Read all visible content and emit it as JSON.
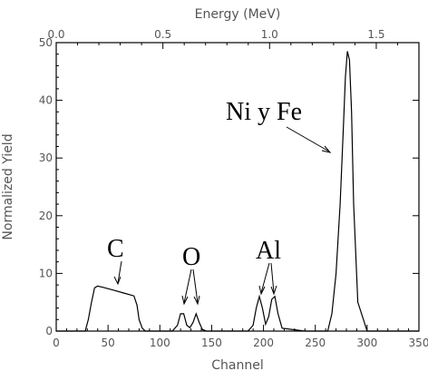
{
  "chart_data": {
    "type": "line",
    "title": "",
    "xlabel": "Channel",
    "ylabel": "Normalized Yield",
    "top_axis_label": "Energy (MeV)",
    "xlim": [
      0,
      350
    ],
    "ylim": [
      0,
      50
    ],
    "top_xlim": [
      0.0,
      1.7
    ],
    "x_ticks": [
      "0",
      "50",
      "100",
      "150",
      "200",
      "250",
      "300",
      "350"
    ],
    "y_ticks": [
      "0",
      "10",
      "20",
      "30",
      "40",
      "50"
    ],
    "top_ticks": [
      "0.0",
      "0.5",
      "1.0",
      "1.5"
    ],
    "grid": false,
    "series": [
      {
        "name": "",
        "x": [
          0,
          28,
          31,
          34,
          37,
          40,
          45,
          55,
          65,
          75,
          78,
          80,
          83,
          86,
          90,
          100,
          112,
          117,
          120,
          123,
          126,
          129,
          132,
          135,
          138,
          141,
          145,
          160,
          185,
          190,
          193,
          196,
          199,
          202,
          205,
          208,
          211,
          214,
          218,
          240,
          262,
          266,
          270,
          274,
          277,
          279,
          281,
          283,
          285,
          287,
          291,
          300,
          330,
          350
        ],
        "y": [
          0,
          0,
          2,
          5,
          7.5,
          7.8,
          7.6,
          7.1,
          6.6,
          6.1,
          4.5,
          2,
          0.5,
          0,
          0,
          0,
          0,
          1,
          3,
          3,
          1,
          0.6,
          1.5,
          3,
          1.5,
          0.3,
          0,
          0,
          0,
          1,
          4,
          6,
          4,
          1.2,
          2.5,
          5.5,
          6,
          3,
          0.5,
          0,
          0,
          3,
          10,
          22,
          35,
          44,
          48.5,
          47,
          38,
          22,
          5,
          0,
          0,
          0
        ]
      }
    ],
    "annotations": [
      {
        "text": "C"
      },
      {
        "text": "O"
      },
      {
        "text": "Al"
      },
      {
        "text": "Ni y Fe"
      }
    ]
  }
}
